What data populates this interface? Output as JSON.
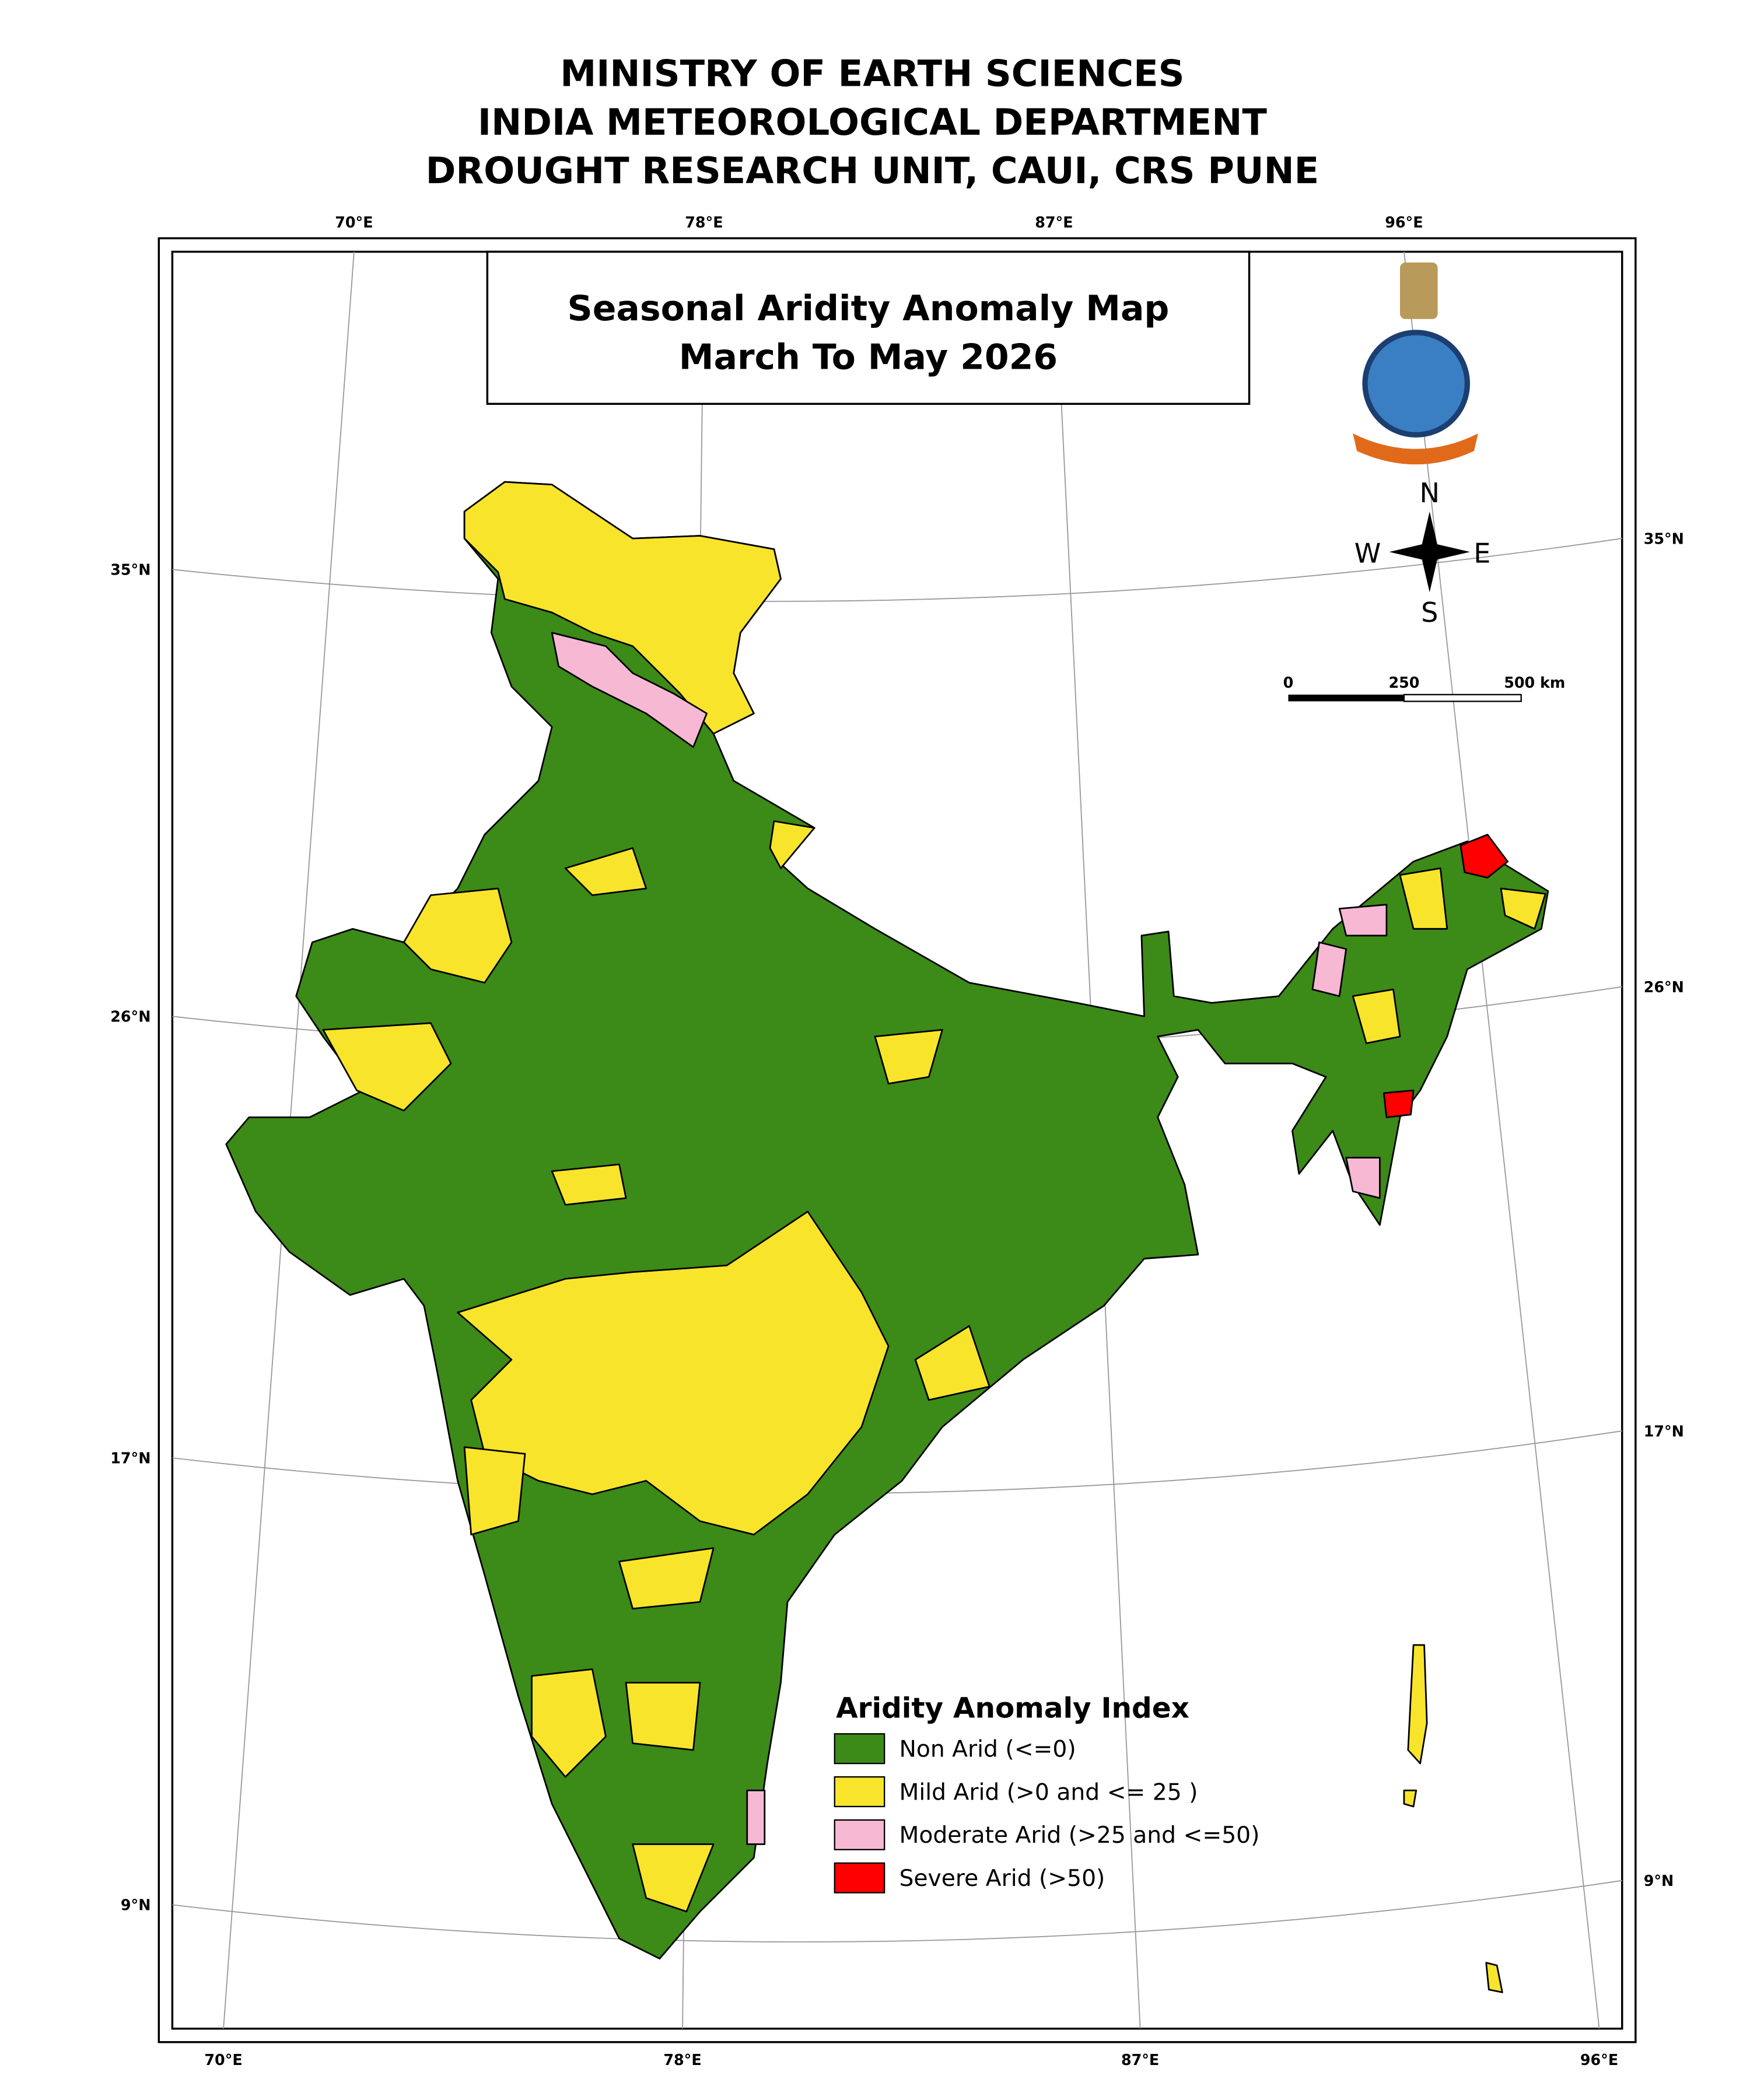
{
  "header": {
    "lines": [
      "MINISTRY OF EARTH SCIENCES",
      "INDIA METEOROLOGICAL DEPARTMENT",
      "DROUGHT RESEARCH UNIT, CAUI, CRS PUNE"
    ]
  },
  "map": {
    "title": [
      "Seasonal Aridity Anomaly Map",
      "March To May 2026"
    ],
    "top_labels": [
      "70°E",
      "78°E",
      "87°E",
      "96°E"
    ],
    "bottom_labels": [
      "70°E",
      "78°E",
      "87°E",
      "96°E"
    ],
    "left_labels": [
      "35°N",
      "26°N",
      "17°N",
      "9°N"
    ],
    "right_labels": [
      "35°N",
      "26°N",
      "17°N",
      "9°N"
    ],
    "compass": {
      "n": "N",
      "e": "E",
      "s": "S",
      "w": "W"
    },
    "scale_bar": {
      "labels": [
        "0",
        "250",
        "500 km"
      ]
    },
    "legend": {
      "title": "Aridity Anomaly Index",
      "items": [
        {
          "label": "Non Arid (<=0)",
          "color": "#3c8a17"
        },
        {
          "label": "Mild Arid (>0 and <= 25 )",
          "color": "#f9e42c"
        },
        {
          "label": "Moderate Arid (>25 and <=50)",
          "color": "#f7b8d4"
        },
        {
          "label": "Severe Arid (>50)",
          "color": "#ff0000"
        }
      ]
    }
  }
}
